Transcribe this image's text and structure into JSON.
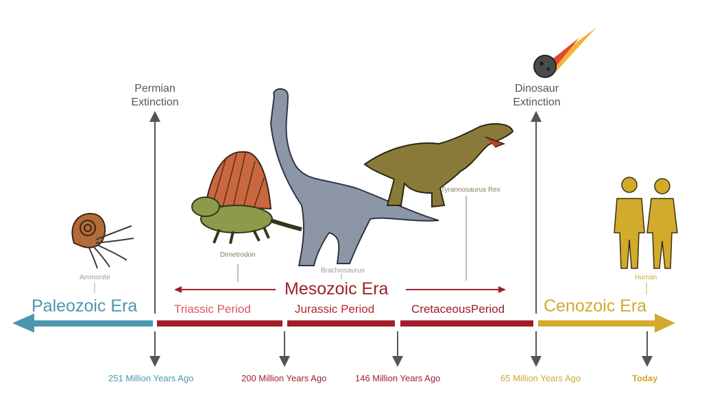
{
  "colors": {
    "paleozoic": "#4a98ad",
    "mesozoic": "#a01e2a",
    "triassic_text": "#d9575f",
    "jurassic_text": "#b8242e",
    "cretaceous_text": "#9a1c26",
    "cenozoic": "#d2aa2c",
    "grey_line": "#555555"
  },
  "eras": {
    "paleozoic": "Paleozoic Era",
    "mesozoic": "Mesozoic Era",
    "cenozoic": "Cenozoic Era"
  },
  "periods": {
    "triassic": "Triassic Period",
    "jurassic": "Jurassic Period",
    "cretaceous": "CretaceousPeriod"
  },
  "events": {
    "permian_line1": "Permian",
    "permian_line2": "Extinction",
    "dinosaur_line1": "Dinosaur",
    "dinosaur_line2": "Extinction"
  },
  "creatures": {
    "ammonite": "Ammonite",
    "dimetrodon": "Dimetrodon",
    "brachiosaurus": "Brachiosaurus",
    "trex": "Tyrannosaurus Rex",
    "human": "Human"
  },
  "dates": {
    "d251": "251 Million Years Ago",
    "d200": "200 Million Years Ago",
    "d146": "146 Million Years Ago",
    "d65": "65 Million Years Ago",
    "today": "Today"
  },
  "icons": [
    "ammonite-icon",
    "dimetrodon-icon",
    "brachiosaurus-icon",
    "trex-icon",
    "meteor-icon",
    "human-male-icon",
    "human-female-icon"
  ]
}
